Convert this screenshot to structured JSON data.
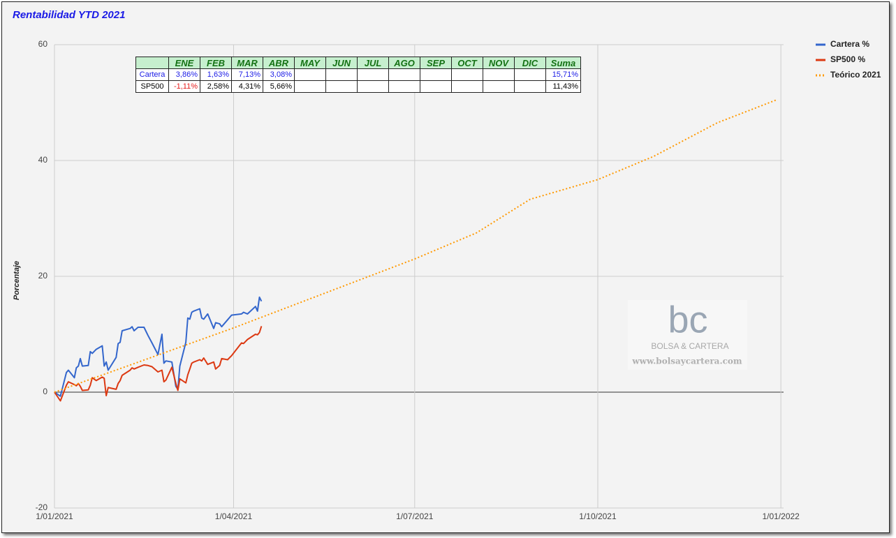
{
  "chart_data": {
    "type": "line",
    "title": "Rentabilidad YTD 2021",
    "y_label": "Porcentaje",
    "x": [
      "2021-01-01",
      "2021-01-04",
      "2021-01-07",
      "2021-01-08",
      "2021-01-11",
      "2021-01-12",
      "2021-01-13",
      "2021-01-14",
      "2021-01-15",
      "2021-01-18",
      "2021-01-19",
      "2021-01-20",
      "2021-01-22",
      "2021-01-25",
      "2021-01-26",
      "2021-01-27",
      "2021-01-28",
      "2021-02-01",
      "2021-02-02",
      "2021-02-03",
      "2021-02-04",
      "2021-02-08",
      "2021-02-09",
      "2021-02-10",
      "2021-02-12",
      "2021-02-15",
      "2021-02-17",
      "2021-02-19",
      "2021-02-22",
      "2021-02-24",
      "2021-02-25",
      "2021-02-26",
      "2021-03-01",
      "2021-03-03",
      "2021-03-04",
      "2021-03-05",
      "2021-03-08",
      "2021-03-09",
      "2021-03-10",
      "2021-03-11",
      "2021-03-12",
      "2021-03-15",
      "2021-03-16",
      "2021-03-17",
      "2021-03-19",
      "2021-03-22",
      "2021-03-23",
      "2021-03-25",
      "2021-03-26",
      "2021-03-29",
      "2021-03-31",
      "2021-04-05",
      "2021-04-06",
      "2021-04-08",
      "2021-04-12",
      "2021-04-13",
      "2021-04-14",
      "2021-04-15"
    ],
    "series": [
      {
        "name": "Cartera %",
        "color": "#3366cc",
        "style": "solid",
        "values": [
          0,
          -0.7,
          3.4,
          3.8,
          2.5,
          4.2,
          4.5,
          5.8,
          4.5,
          4.6,
          7.0,
          6.7,
          7.4,
          8.0,
          4.5,
          5.2,
          3.8,
          6.0,
          8.4,
          8.6,
          10.6,
          11.0,
          11.3,
          10.6,
          11.2,
          11.2,
          9.8,
          8.5,
          6.5,
          10.0,
          5.0,
          5.4,
          5.2,
          1.0,
          0.5,
          4.5,
          8.6,
          12.8,
          12.6,
          13.8,
          14.0,
          14.4,
          12.8,
          12.6,
          13.5,
          11.0,
          12.0,
          11.8,
          11.3,
          12.5,
          13.3,
          13.5,
          13.8,
          13.5,
          14.8,
          14.0,
          16.4,
          15.7
        ]
      },
      {
        "name": "SP500 %",
        "color": "#dc3912",
        "style": "solid",
        "values": [
          0,
          -1.5,
          1.2,
          1.8,
          1.3,
          1.1,
          1.5,
          1.0,
          0.3,
          0.4,
          1.2,
          2.5,
          2.0,
          2.6,
          2.4,
          -0.6,
          0.8,
          0.5,
          1.5,
          2.0,
          2.9,
          3.8,
          4.2,
          4.0,
          4.3,
          4.7,
          4.6,
          4.4,
          3.5,
          3.8,
          1.8,
          2.1,
          4.3,
          1.5,
          0.3,
          2.3,
          1.6,
          3.0,
          4.0,
          5.0,
          5.2,
          5.6,
          5.4,
          5.9,
          4.8,
          5.2,
          4.0,
          4.6,
          5.8,
          5.6,
          6.3,
          8.5,
          8.4,
          9.1,
          10.0,
          9.9,
          10.3,
          11.4
        ]
      },
      {
        "name": "Teórico 2021",
        "color": "#ff9900",
        "style": "dotted",
        "x": [
          "2021-01-01",
          "2021-04-01",
          "2021-07-01",
          "2021-08-01",
          "2021-08-28",
          "2021-10-01",
          "2021-10-29",
          "2021-11-30",
          "2021-12-30"
        ],
        "values": [
          0,
          11.1,
          23.0,
          27.5,
          33.3,
          36.7,
          40.7,
          46.5,
          50.5
        ]
      }
    ],
    "xlim": [
      "2021-01-01",
      "2022-01-02"
    ],
    "xticks": [
      {
        "value": "2021-01-01",
        "label": "1/01/2021"
      },
      {
        "value": "2021-04-01",
        "label": "1/04/2021"
      },
      {
        "value": "2021-07-01",
        "label": "1/07/2021"
      },
      {
        "value": "2021-10-01",
        "label": "1/10/2021"
      },
      {
        "value": "2022-01-01",
        "label": "1/01/2022"
      }
    ],
    "ylim": [
      -20,
      60
    ],
    "yticks": [
      -20,
      0,
      20,
      40,
      60
    ],
    "grid": true,
    "legend": "right"
  },
  "table": {
    "months": [
      "ENE",
      "FEB",
      "MAR",
      "ABR",
      "MAY",
      "JUN",
      "JUL",
      "AGO",
      "SEP",
      "OCT",
      "NOV",
      "DIC"
    ],
    "sum_header": "Suma",
    "rows": [
      {
        "label": "Cartera",
        "color": "#1a1ae6",
        "months": [
          "3,86%",
          "1,63%",
          "7,13%",
          "3,08%"
        ],
        "suma": "15,71%"
      },
      {
        "label": "SP500",
        "color": "#000000",
        "months": [
          "-1,11%",
          "2,58%",
          "4,31%",
          "5,66%"
        ],
        "suma": "11,43%"
      }
    ],
    "negative_color": "#e61a1a"
  },
  "watermark": {
    "logo": "bc",
    "name": "BOLSA & CARTERA",
    "url": "www.bolsaycartera.com"
  }
}
